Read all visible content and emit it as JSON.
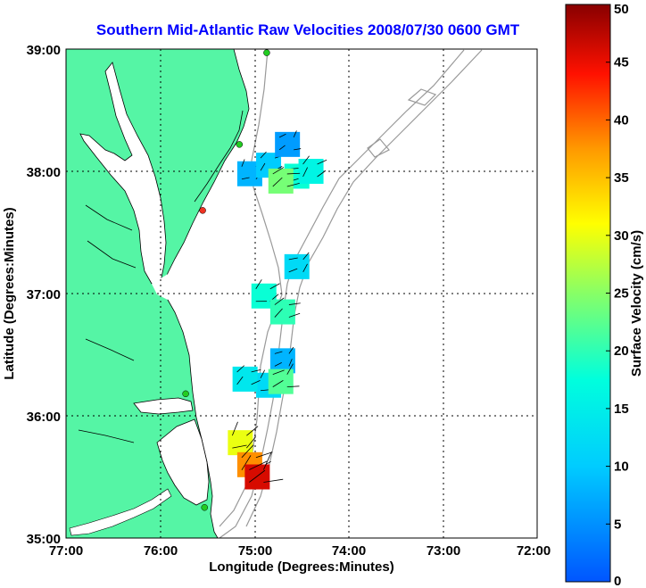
{
  "title": "Southern Mid-Atlantic Raw Velocities 2008/07/30 0600 GMT",
  "map": {
    "xlabel": "Longitude (Degrees:Minutes)",
    "ylabel": "Latitude (Degrees:Minutes)",
    "x_ticks": [
      "77:00",
      "76:00",
      "75:00",
      "74:00",
      "73:00",
      "72:00"
    ],
    "y_ticks": [
      "39:00",
      "38:00",
      "37:00",
      "36:00",
      "35:00"
    ],
    "lon_range": [
      -77,
      -72
    ],
    "lat_range": [
      35,
      39
    ],
    "land_color": "#55f5a5",
    "grid": "dotted"
  },
  "colorbar": {
    "label": "Surface Velocity (cm/s)",
    "ticks": [
      "50",
      "45",
      "40",
      "35",
      "30",
      "25",
      "20",
      "15",
      "10",
      "5",
      "0"
    ],
    "range": [
      0,
      50
    ],
    "colormap": "jet"
  },
  "stations": [
    {
      "lon": -74.87,
      "lat": 38.97,
      "color": "#22cc22"
    },
    {
      "lon": -75.16,
      "lat": 38.22,
      "color": "#22cc22"
    },
    {
      "lon": -75.55,
      "lat": 37.68,
      "color": "#ee3322"
    },
    {
      "lon": -75.73,
      "lat": 36.18,
      "color": "#22cc22"
    },
    {
      "lon": -75.53,
      "lat": 35.25,
      "color": "#22cc22"
    }
  ],
  "velocity_patches": [
    {
      "lon": -75.05,
      "lat": 37.98,
      "speed": 8
    },
    {
      "lon": -74.85,
      "lat": 38.05,
      "speed": 10
    },
    {
      "lon": -74.65,
      "lat": 38.22,
      "speed": 6
    },
    {
      "lon": -74.55,
      "lat": 37.96,
      "speed": 18
    },
    {
      "lon": -74.4,
      "lat": 38.0,
      "speed": 16
    },
    {
      "lon": -74.72,
      "lat": 37.92,
      "speed": 24
    },
    {
      "lon": -74.55,
      "lat": 37.22,
      "speed": 12
    },
    {
      "lon": -74.9,
      "lat": 36.98,
      "speed": 18
    },
    {
      "lon": -74.7,
      "lat": 36.85,
      "speed": 20
    },
    {
      "lon": -74.7,
      "lat": 36.45,
      "speed": 8
    },
    {
      "lon": -74.85,
      "lat": 36.25,
      "speed": 12
    },
    {
      "lon": -75.1,
      "lat": 36.3,
      "speed": 14
    },
    {
      "lon": -74.72,
      "lat": 36.28,
      "speed": 22
    },
    {
      "lon": -75.15,
      "lat": 35.78,
      "speed": 30
    },
    {
      "lon": -75.05,
      "lat": 35.6,
      "speed": 38
    },
    {
      "lon": -74.97,
      "lat": 35.5,
      "speed": 46
    }
  ]
}
